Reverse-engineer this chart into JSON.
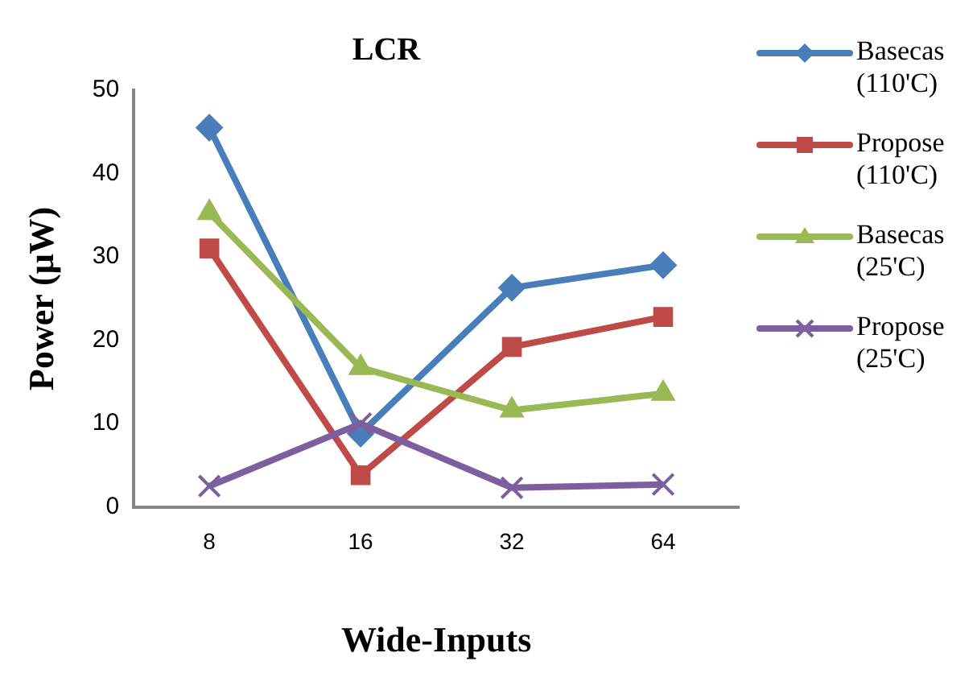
{
  "chart_data": {
    "type": "line",
    "title": "LCR",
    "xlabel": "Wide-Inputs",
    "ylabel": "Power (μW)",
    "categories": [
      "8",
      "16",
      "32",
      "64"
    ],
    "ylim": [
      0,
      50
    ],
    "yticks": [
      0,
      10,
      20,
      30,
      40,
      50
    ],
    "grid": false,
    "legend": "right",
    "series": [
      {
        "name": "Basecas (110'C)",
        "color": "#4a7ebb",
        "marker": "diamond",
        "values": [
          45.5,
          8.8,
          26.3,
          29
        ]
      },
      {
        "name": "Propose (110'C)",
        "color": "#be4b48",
        "marker": "square",
        "values": [
          31,
          3.8,
          19.2,
          22.8
        ]
      },
      {
        "name": "Basecas (25'C)",
        "color": "#98b954",
        "marker": "triangle",
        "values": [
          35.3,
          16.7,
          11.6,
          13.6
        ]
      },
      {
        "name": "Propose (25'C)",
        "color": "#7d5fa0",
        "marker": "cross",
        "values": [
          2.5,
          10,
          2.3,
          2.7
        ]
      }
    ]
  }
}
